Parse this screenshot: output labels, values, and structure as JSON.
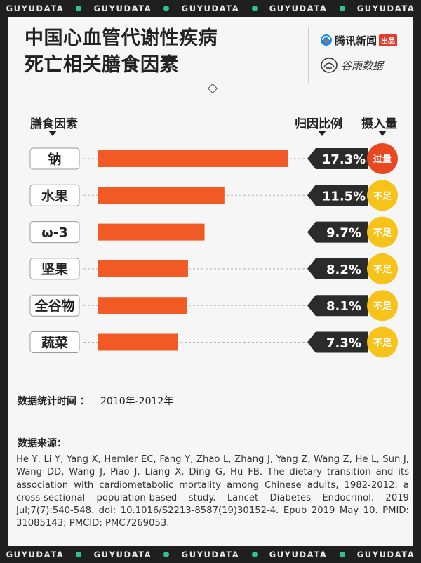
{
  "banner": {
    "text": "GUYUDATA",
    "accent": "#2bc48a"
  },
  "title": {
    "line1": "中国心血管代谢性疾病",
    "line2": "死亡相关膳食因素"
  },
  "logos": {
    "tencent_name": "腾讯新闻",
    "tencent_badge": "出品",
    "guyu_name": "谷雨数据"
  },
  "headers": {
    "factor": "膳食因素",
    "ratio": "归因比例",
    "intake": "摄入量"
  },
  "colors": {
    "bar": "#f15a24",
    "pill": "#2b2b2b",
    "excess": "#e8471f",
    "insufficient": "#f7c21a"
  },
  "chart_data": {
    "type": "bar",
    "orientation": "horizontal",
    "categories": [
      "钠",
      "水果",
      "ω-3",
      "坚果",
      "全谷物",
      "蔬菜"
    ],
    "values": [
      17.3,
      11.5,
      9.7,
      8.2,
      8.1,
      7.3
    ],
    "value_labels": [
      "17.3%",
      "11.5%",
      "9.7%",
      "8.2%",
      "8.1%",
      "7.3%"
    ],
    "intake": [
      "过量",
      "不足",
      "不足",
      "不足",
      "不足",
      "不足"
    ],
    "xlabel": "",
    "ylabel": "",
    "xlim": [
      0,
      17.3
    ]
  },
  "meta": {
    "time_label": "数据统计时间 ：",
    "time_value": "2010年-2012年"
  },
  "source": {
    "label": "数据来源：",
    "text": "He Y, Li Y, Yang X, Hemler EC, Fang Y, Zhao L, Zhang J, Yang Z, Wang Z, He L, Sun J, Wang DD, Wang J, Piao J, Liang X, Ding G, Hu FB. The dietary transition and its association with cardiometabolic mortality among Chinese adults, 1982-2012: a cross-sectional population-based study. Lancet Diabetes Endocrinol. 2019 Jul;7(7):540-548. doi: 10.1016/S2213-8587(19)30152-4. Epub 2019 May 10. PMID: 31085143; PMCID: PMC7269053."
  }
}
